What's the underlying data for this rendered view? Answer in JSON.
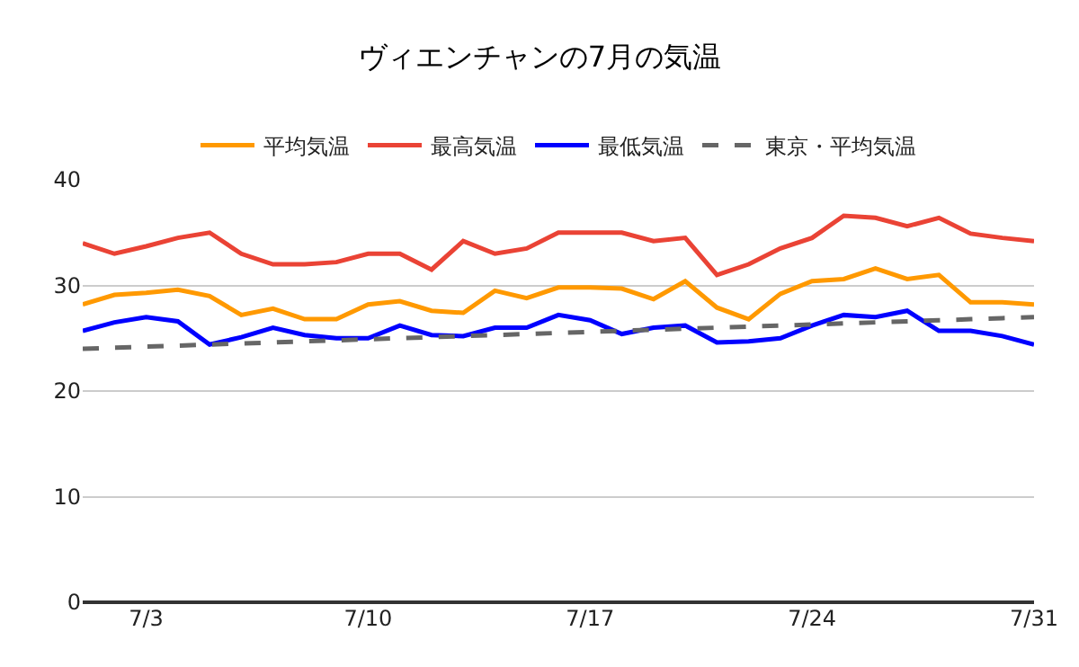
{
  "chart_data": {
    "type": "line",
    "title": "ヴィエンチャンの7月の気温",
    "categories": [
      null,
      null,
      "7/3",
      null,
      null,
      null,
      null,
      null,
      null,
      "7/10",
      null,
      null,
      null,
      null,
      null,
      null,
      "7/17",
      null,
      null,
      null,
      null,
      null,
      null,
      "7/24",
      null,
      null,
      null,
      null,
      null,
      null,
      "7/31"
    ],
    "series": [
      {
        "name": "平均気温",
        "color": "#ff9900",
        "values": [
          28.2,
          29.1,
          29.3,
          29.6,
          29.0,
          27.2,
          27.8,
          26.8,
          26.8,
          28.2,
          28.5,
          27.6,
          27.4,
          29.5,
          28.8,
          29.8,
          29.8,
          29.7,
          28.7,
          30.4,
          27.9,
          26.8,
          29.2,
          30.4,
          30.6,
          31.6,
          30.6,
          31.0,
          28.4,
          28.4,
          28.2
        ]
      },
      {
        "name": "最高気温",
        "color": "#ea4335",
        "values": [
          34.0,
          33.0,
          33.7,
          34.5,
          35.0,
          33.0,
          32.0,
          32.0,
          32.2,
          33.0,
          33.0,
          31.5,
          34.2,
          33.0,
          33.5,
          35.0,
          35.0,
          35.0,
          34.2,
          34.5,
          31.0,
          32.0,
          33.5,
          34.5,
          36.6,
          36.4,
          35.6,
          36.4,
          34.9,
          34.5,
          34.2
        ]
      },
      {
        "name": "最低気温",
        "color": "#0000ff",
        "values": [
          25.7,
          26.5,
          27.0,
          26.6,
          24.4,
          25.1,
          26.0,
          25.3,
          25.0,
          25.0,
          26.2,
          25.3,
          25.2,
          26.0,
          26.0,
          27.2,
          26.7,
          25.4,
          26.0,
          26.2,
          24.6,
          24.7,
          25.0,
          26.2,
          27.2,
          27.0,
          27.6,
          25.7,
          25.7,
          25.2,
          24.4
        ]
      },
      {
        "name": "東京・平均気温",
        "color": "#666666",
        "line_style": "dashed",
        "values": [
          24.0,
          24.1,
          24.2,
          24.3,
          24.4,
          24.5,
          24.6,
          24.7,
          24.8,
          24.9,
          25.0,
          25.1,
          25.2,
          25.3,
          25.4,
          25.5,
          25.6,
          25.7,
          25.8,
          25.9,
          26.0,
          26.1,
          26.2,
          26.3,
          26.4,
          26.5,
          26.6,
          26.7,
          26.8,
          26.9,
          27.0
        ]
      }
    ],
    "ylim": [
      0,
      40
    ],
    "yticks": [
      0,
      10,
      20,
      30,
      40
    ],
    "grid": "y",
    "legend": "top"
  }
}
